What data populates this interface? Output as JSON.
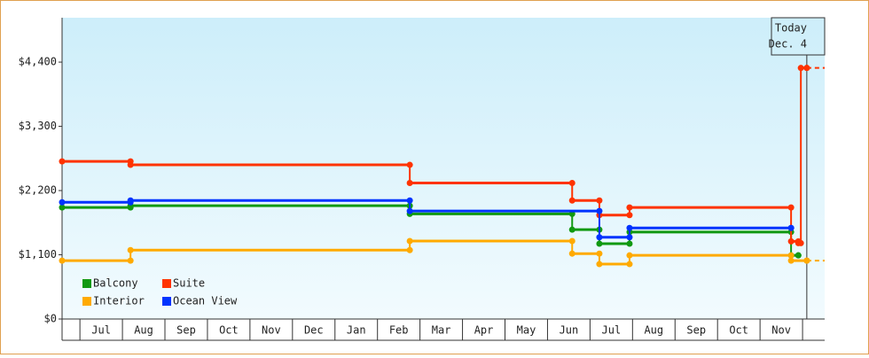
{
  "chart_data": {
    "type": "step-line",
    "xlim": [
      -0.42,
      17.52
    ],
    "xticks": [
      {
        "value": 0.5,
        "label": "Jul"
      },
      {
        "value": 1.5,
        "label": "Aug"
      },
      {
        "value": 2.5,
        "label": "Sep"
      },
      {
        "value": 3.5,
        "label": "Oct"
      },
      {
        "value": 4.5,
        "label": "Nov"
      },
      {
        "value": 5.5,
        "label": "Dec"
      },
      {
        "value": 6.5,
        "label": "Jan"
      },
      {
        "value": 7.5,
        "label": "Feb"
      },
      {
        "value": 8.5,
        "label": "Mar"
      },
      {
        "value": 9.5,
        "label": "Apr"
      },
      {
        "value": 10.5,
        "label": "May"
      },
      {
        "value": 11.5,
        "label": "Jun"
      },
      {
        "value": 12.5,
        "label": "Jul"
      },
      {
        "value": 13.5,
        "label": "Aug"
      },
      {
        "value": 14.5,
        "label": "Sep"
      },
      {
        "value": 15.5,
        "label": "Oct"
      },
      {
        "value": 16.5,
        "label": "Nov"
      }
    ],
    "ylim": [
      0,
      5160
    ],
    "yticks": [
      {
        "value": 0,
        "label": "$0"
      },
      {
        "value": 1100,
        "label": "$1,100"
      },
      {
        "value": 2200,
        "label": "$2,200"
      },
      {
        "value": 3300,
        "label": "$3,300"
      },
      {
        "value": 4400,
        "label": "$4,400"
      }
    ],
    "today": {
      "x": 17.1,
      "label": [
        "Today",
        "Dec. 4"
      ]
    },
    "series": [
      {
        "name": "Balcony",
        "color": "#119911",
        "x": [
          -0.42,
          1.19,
          7.76,
          11.58,
          12.22,
          12.93,
          16.73,
          16.9
        ],
        "values": [
          1910,
          1940,
          1800,
          1530,
          1290,
          1490,
          1090,
          1090
        ]
      },
      {
        "name": "Suite",
        "color": "#ff3300",
        "x": [
          -0.42,
          1.19,
          7.76,
          11.58,
          12.22,
          12.93,
          16.73,
          16.9,
          16.96,
          17.1
        ],
        "values": [
          2700,
          2640,
          2330,
          2030,
          1780,
          1910,
          1330,
          1300,
          4300,
          4300
        ]
      },
      {
        "name": "Interior",
        "color": "#ffaa00",
        "x": [
          -0.42,
          1.19,
          7.76,
          11.58,
          12.22,
          12.93,
          16.73,
          17.1
        ],
        "values": [
          1000,
          1180,
          1335,
          1120,
          940,
          1090,
          1000,
          1000
        ]
      },
      {
        "name": "Ocean View",
        "color": "#0033ff",
        "x": [
          -0.42,
          1.19,
          7.76,
          12.22,
          12.93,
          16.73
        ],
        "values": [
          2000,
          2030,
          1850,
          1400,
          1560,
          1560
        ]
      }
    ]
  }
}
